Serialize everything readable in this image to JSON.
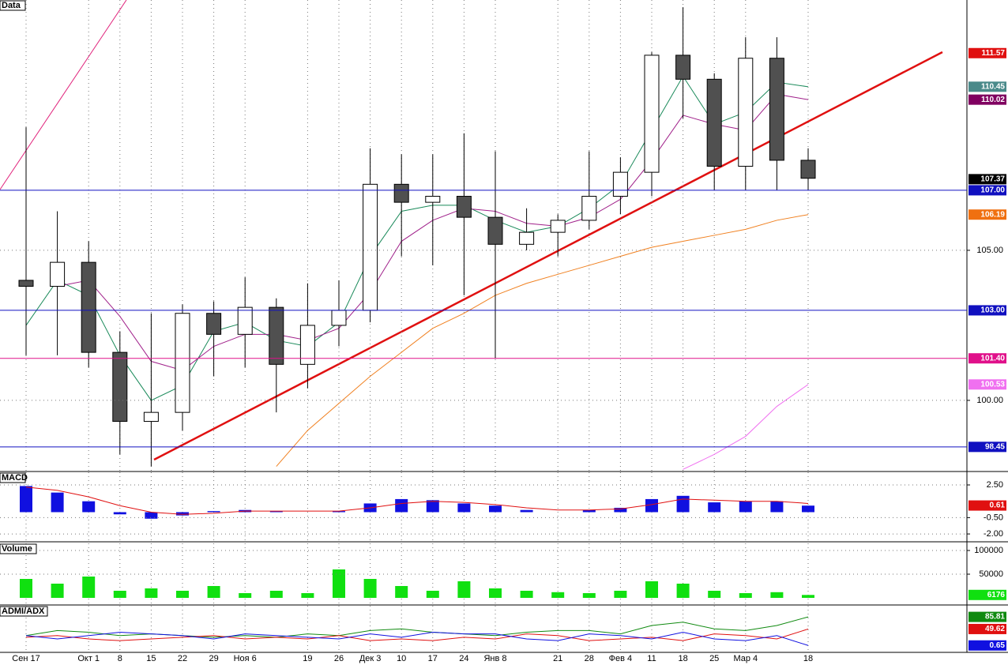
{
  "chart_data": [
    {
      "type": "candlestick",
      "title": "Data",
      "categories": [
        "Сен 17",
        null,
        "Окт 1",
        "8",
        "15",
        "22",
        "29",
        "Ноя 6",
        null,
        "19",
        "26",
        "Дек 3",
        "10",
        "17",
        "24",
        "Янв 8",
        null,
        "21",
        "28",
        "Фев 4",
        "11",
        "18",
        "25",
        "Мар 4",
        null,
        "18"
      ],
      "open": [
        104,
        103.8,
        104.6,
        101.6,
        99.3,
        99.6,
        102.9,
        102.2,
        103.1,
        101.2,
        102.5,
        103.0,
        107.2,
        106.6,
        106.8,
        106.1,
        105.2,
        105.6,
        106.0,
        106.8,
        107.6,
        111.5,
        110.7,
        107.8,
        111.4,
        108.0
      ],
      "high": [
        109.1,
        106.3,
        105.3,
        102.3,
        102.9,
        103.2,
        103.3,
        104.1,
        103.4,
        103.9,
        104.0,
        108.4,
        108.2,
        108.2,
        108.9,
        108.3,
        106.4,
        106.2,
        108.3,
        108.1,
        111.6,
        113.1,
        110.9,
        112.1,
        112.1,
        108.4
      ],
      "low": [
        101.5,
        101.5,
        101.1,
        98.2,
        97.8,
        99.0,
        100.8,
        101.1,
        99.6,
        100.4,
        101.8,
        102.6,
        104.8,
        104.5,
        103.5,
        101.4,
        105.0,
        104.8,
        105.7,
        106.2,
        106.8,
        109.4,
        107.0,
        107.0,
        107.0,
        107.0
      ],
      "close": [
        103.8,
        104.6,
        101.6,
        99.3,
        99.6,
        102.9,
        102.2,
        103.1,
        101.2,
        102.5,
        103.0,
        107.2,
        106.6,
        106.8,
        106.1,
        105.2,
        105.6,
        106.0,
        106.8,
        107.6,
        111.5,
        110.7,
        107.8,
        111.4,
        108.0,
        107.4
      ],
      "up_color": "#ffffff",
      "down_color": "#505050",
      "series": [
        {
          "color": "#1a8a5a",
          "values": [
            102.5,
            104.0,
            103.5,
            101.5,
            100.0,
            100.5,
            102.3,
            102.6,
            102.0,
            101.8,
            102.6,
            104.8,
            106.3,
            106.5,
            106.5,
            106.0,
            105.6,
            105.8,
            106.4,
            107.2,
            109.0,
            110.8,
            109.2,
            109.6,
            110.6,
            110.45
          ]
        },
        {
          "color": "#a0208a",
          "values": [
            null,
            103.8,
            104.0,
            102.8,
            101.3,
            101.0,
            101.8,
            102.2,
            102.2,
            102.0,
            102.4,
            103.6,
            105.3,
            106.0,
            106.4,
            106.3,
            105.9,
            105.8,
            106.1,
            106.7,
            108.0,
            109.5,
            109.2,
            109.0,
            110.2,
            110.02
          ]
        },
        {
          "color": "#f08020",
          "values": [
            null,
            null,
            null,
            null,
            null,
            null,
            null,
            null,
            97.8,
            99.0,
            99.9,
            100.8,
            101.6,
            102.4,
            102.9,
            103.5,
            103.9,
            104.2,
            104.5,
            104.8,
            105.1,
            105.3,
            105.5,
            105.7,
            106.0,
            106.19
          ]
        },
        {
          "color": "#f070f0",
          "values": [
            null,
            null,
            null,
            null,
            null,
            null,
            null,
            null,
            null,
            null,
            null,
            null,
            null,
            null,
            null,
            null,
            null,
            null,
            null,
            null,
            null,
            97.7,
            98.2,
            98.8,
            99.8,
            100.53
          ]
        }
      ],
      "ylim": [
        97.63,
        113.34
      ],
      "yticks": [
        {
          "value": 105,
          "label": "105.00"
        },
        {
          "value": 100,
          "label": "100.00"
        }
      ],
      "tags": [
        {
          "value": 111.57,
          "color": "#e01010"
        },
        {
          "value": 110.45,
          "color": "#4a8a8a"
        },
        {
          "value": 110.02,
          "color": "#800060"
        },
        {
          "value": 107.37,
          "color": "#000000"
        },
        {
          "value": 107,
          "label": "107.00",
          "color": "#1010c0",
          "line": true
        },
        {
          "value": 106.19,
          "color": "#f07010"
        },
        {
          "value": 103,
          "label": "103.00",
          "color": "#1010c0",
          "line": true
        },
        {
          "value": 101.4,
          "label": "101.40",
          "color": "#e0108a",
          "line": true
        },
        {
          "value": 100.53,
          "color": "#f070f0"
        },
        {
          "value": 98.45,
          "color": "#1010c0",
          "line": true
        }
      ]
    },
    {
      "type": "histogram-line",
      "title": "MACD",
      "values": [
        2.4,
        1.8,
        1.0,
        -0.2,
        -0.6,
        -0.3,
        0.1,
        0.2,
        0.1,
        0.0,
        0.1,
        0.8,
        1.2,
        1.1,
        0.8,
        0.6,
        0.2,
        0.0,
        0.2,
        0.4,
        1.2,
        1.5,
        0.9,
        1.0,
        1.0,
        0.6
      ],
      "color": "#1010e0",
      "series": [
        {
          "color": "#e01010",
          "values": [
            2.3,
            2.0,
            1.4,
            0.6,
            0.0,
            -0.2,
            -0.1,
            0.1,
            0.1,
            0.1,
            0.1,
            0.4,
            0.8,
            1.0,
            0.9,
            0.7,
            0.4,
            0.2,
            0.2,
            0.3,
            0.7,
            1.2,
            1.1,
            1.0,
            1.0,
            0.8
          ]
        }
      ],
      "ylim": [
        -2.72,
        3.66
      ],
      "yticks": [
        {
          "value": 2.5,
          "label": "2.50"
        },
        {
          "value": -0.5,
          "label": "-0.50"
        },
        {
          "value": -2,
          "label": "-2.00"
        }
      ],
      "tags": [
        {
          "value": 0.61,
          "color": "#e01010"
        }
      ]
    },
    {
      "type": "bar",
      "title": "Volume",
      "values": [
        40000,
        30000,
        45000,
        15000,
        20000,
        15000,
        25000,
        10000,
        15000,
        10000,
        60000,
        40000,
        25000,
        15000,
        35000,
        20000,
        15000,
        12000,
        10000,
        15000,
        35000,
        30000,
        15000,
        10000,
        12000,
        6176
      ],
      "color": "#10e010",
      "ylim": [
        -15000,
        115000
      ],
      "yticks": [
        100000,
        50000
      ],
      "tags": [
        {
          "value": 6176,
          "color": "#10e010"
        }
      ]
    },
    {
      "type": "line",
      "title": "ADMI/ADX",
      "series": [
        {
          "color": "#108a10",
          "values": [
            30,
            45,
            40,
            30,
            35,
            30,
            25,
            30,
            25,
            35,
            30,
            45,
            50,
            40,
            35,
            30,
            40,
            45,
            45,
            35,
            60,
            70,
            50,
            45,
            60,
            85.81
          ]
        },
        {
          "color": "#e01010",
          "values": [
            25,
            30,
            20,
            15,
            20,
            25,
            30,
            20,
            25,
            20,
            30,
            15,
            20,
            15,
            25,
            20,
            35,
            30,
            15,
            20,
            25,
            15,
            35,
            30,
            20,
            49.62
          ]
        },
        {
          "color": "#1010e0",
          "values": [
            30,
            20,
            30,
            40,
            35,
            30,
            20,
            35,
            30,
            25,
            20,
            35,
            25,
            40,
            35,
            35,
            20,
            15,
            35,
            30,
            20,
            40,
            20,
            15,
            30,
            0.65
          ]
        }
      ],
      "ylim": [
        -20,
        119
      ],
      "yticks": [],
      "tags": [
        {
          "value": 85.81,
          "color": "#108a10"
        },
        {
          "value": 49.62,
          "color": "#e01010"
        },
        {
          "value": 0.65,
          "color": "#1010e0"
        }
      ]
    }
  ]
}
